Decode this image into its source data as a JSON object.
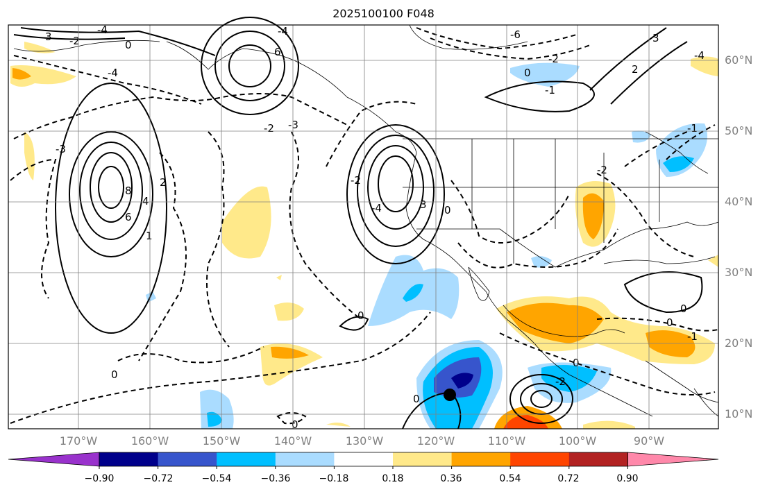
{
  "title": "2025100100 F048",
  "map": {
    "lat_labels": [
      "60°N",
      "50°N",
      "40°N",
      "30°N",
      "20°N",
      "10°N"
    ],
    "lon_labels": [
      "170°W",
      "160°W",
      "150°W",
      "140°W",
      "130°W",
      "120°W",
      "110°W",
      "100°W",
      "90°W"
    ]
  },
  "contour_labels": [
    "8",
    "6",
    "4",
    "2",
    "1",
    "0",
    "-1",
    "-2",
    "-3",
    "-4",
    "-6",
    "3"
  ],
  "colorbar": {
    "labels": [
      "−0.90",
      "−0.72",
      "−0.54",
      "−0.36",
      "−0.18",
      "0.18",
      "0.36",
      "0.54",
      "0.72",
      "0.90"
    ],
    "colors": [
      "#9932cc",
      "#00008b",
      "#3755cc",
      "#00bfff",
      "#aadcff",
      "#ffffff",
      "#ffe98a",
      "#ffa500",
      "#ff4500",
      "#b22222",
      "#ff88aa"
    ]
  },
  "colors": {
    "contour": "#000000",
    "grid": "#808080",
    "axis_label": "#808080"
  }
}
